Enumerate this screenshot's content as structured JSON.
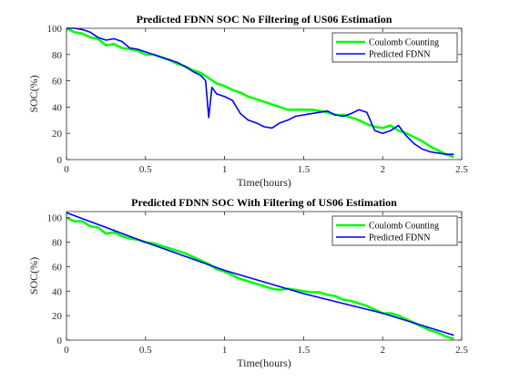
{
  "colors": {
    "coulomb": "#00ff00",
    "fdnn": "#0000ff"
  },
  "chart_data": [
    {
      "type": "line",
      "title": "Predicted FDNN SOC No Filtering of US06 Estimation",
      "xlabel": "Time(hours)",
      "ylabel": "SOC(%)",
      "xlim": [
        0,
        2.5
      ],
      "ylim": [
        0,
        100
      ],
      "xticks": [
        0,
        0.5,
        1,
        1.5,
        2,
        2.5
      ],
      "xtick_labels": [
        "0",
        "0.5",
        "1",
        "1.5",
        "2",
        "2.5"
      ],
      "yticks": [
        0,
        20,
        40,
        60,
        80,
        100
      ],
      "ytick_labels": [
        "0",
        "20",
        "40",
        "60",
        "80",
        "100"
      ],
      "grid": false,
      "legend_position": "top-right",
      "series": [
        {
          "name": "Coulomb Counting",
          "color": "#00ff00",
          "x": [
            0,
            0.05,
            0.1,
            0.15,
            0.2,
            0.25,
            0.3,
            0.35,
            0.4,
            0.45,
            0.5,
            0.55,
            0.6,
            0.65,
            0.7,
            0.75,
            0.8,
            0.85,
            0.9,
            0.95,
            1.0,
            1.05,
            1.1,
            1.15,
            1.2,
            1.25,
            1.3,
            1.35,
            1.4,
            1.45,
            1.5,
            1.55,
            1.6,
            1.65,
            1.7,
            1.75,
            1.8,
            1.85,
            1.9,
            1.95,
            2.0,
            2.05,
            2.1,
            2.15,
            2.2,
            2.25,
            2.3,
            2.35,
            2.4,
            2.45
          ],
          "y": [
            100,
            97,
            96,
            93,
            92,
            87,
            88,
            85,
            84,
            83,
            80,
            80,
            78,
            76,
            73,
            71,
            68,
            66,
            62,
            58,
            56,
            53,
            51,
            48,
            46,
            44,
            42,
            40,
            38,
            38,
            38,
            38,
            37,
            36,
            34,
            34,
            32,
            30,
            27,
            25,
            24,
            26,
            22,
            20,
            17,
            14,
            10,
            7,
            4,
            2
          ]
        },
        {
          "name": "Predicted FDNN",
          "color": "#0000ff",
          "x": [
            0,
            0.05,
            0.1,
            0.15,
            0.2,
            0.25,
            0.3,
            0.35,
            0.4,
            0.45,
            0.5,
            0.55,
            0.6,
            0.65,
            0.7,
            0.75,
            0.8,
            0.85,
            0.88,
            0.9,
            0.92,
            0.95,
            1.0,
            1.05,
            1.1,
            1.15,
            1.2,
            1.25,
            1.3,
            1.35,
            1.4,
            1.45,
            1.5,
            1.55,
            1.6,
            1.65,
            1.7,
            1.75,
            1.8,
            1.85,
            1.9,
            1.95,
            2.0,
            2.05,
            2.1,
            2.15,
            2.2,
            2.25,
            2.3,
            2.35,
            2.4,
            2.45
          ],
          "y": [
            100,
            100,
            99,
            97,
            93,
            91,
            92,
            90,
            85,
            84,
            82,
            80,
            78,
            76,
            74,
            71,
            67,
            64,
            60,
            32,
            55,
            50,
            48,
            45,
            35,
            30,
            28,
            25,
            24,
            28,
            30,
            33,
            34,
            35,
            36,
            37,
            34,
            33,
            35,
            38,
            36,
            22,
            20,
            22,
            26,
            18,
            12,
            8,
            6,
            5,
            4,
            4
          ]
        }
      ]
    },
    {
      "type": "line",
      "title": "Predicted FDNN SOC With Filtering of US06 Estimation",
      "xlabel": "Time(hours)",
      "ylabel": "SOC(%)",
      "xlim": [
        0,
        2.5
      ],
      "ylim": [
        0,
        105
      ],
      "xticks": [
        0,
        0.5,
        1,
        1.5,
        2,
        2.5
      ],
      "xtick_labels": [
        "0",
        "0.5",
        "1",
        "1.5",
        "2",
        "2.5"
      ],
      "yticks": [
        0,
        20,
        40,
        60,
        80,
        100
      ],
      "ytick_labels": [
        "0",
        "20",
        "40",
        "60",
        "80",
        "100"
      ],
      "grid": false,
      "legend_position": "top-right",
      "series": [
        {
          "name": "Coulomb Counting",
          "color": "#00ff00",
          "x": [
            0,
            0.05,
            0.1,
            0.15,
            0.2,
            0.25,
            0.3,
            0.35,
            0.4,
            0.45,
            0.5,
            0.55,
            0.6,
            0.65,
            0.7,
            0.75,
            0.8,
            0.85,
            0.9,
            0.95,
            1.0,
            1.05,
            1.1,
            1.15,
            1.2,
            1.25,
            1.3,
            1.35,
            1.4,
            1.45,
            1.5,
            1.55,
            1.6,
            1.65,
            1.7,
            1.75,
            1.8,
            1.85,
            1.9,
            1.95,
            2.0,
            2.05,
            2.1,
            2.15,
            2.2,
            2.25,
            2.3,
            2.35,
            2.4,
            2.45
          ],
          "y": [
            100,
            97,
            97,
            93,
            92,
            87,
            88,
            85,
            83,
            82,
            80,
            79,
            77,
            75,
            73,
            71,
            68,
            65,
            62,
            58,
            56,
            53,
            50,
            48,
            46,
            44,
            42,
            41,
            42,
            41,
            40,
            39,
            39,
            37,
            36,
            33,
            32,
            30,
            28,
            25,
            22,
            22,
            20,
            17,
            14,
            11,
            8,
            6,
            3,
            1
          ]
        },
        {
          "name": "Predicted FDNN",
          "color": "#0000ff",
          "x": [
            0,
            0.5,
            1.0,
            1.5,
            2.0,
            2.45
          ],
          "y": [
            104,
            80,
            57,
            38,
            22,
            4
          ]
        }
      ]
    }
  ]
}
